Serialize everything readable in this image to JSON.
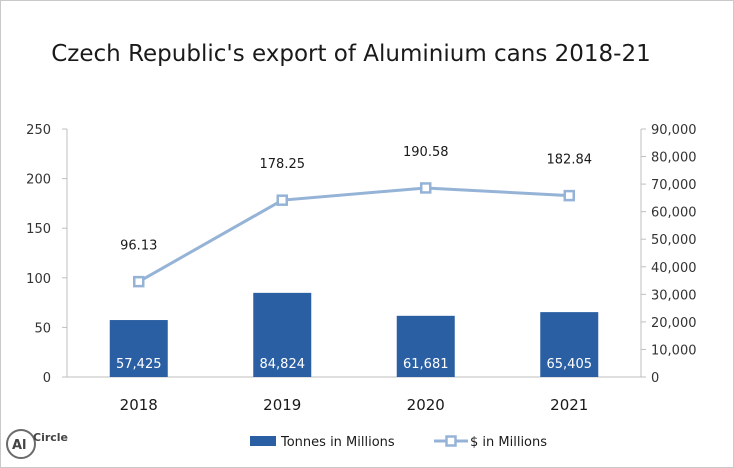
{
  "chart_data": {
    "type": "bar",
    "title": "Czech Republic's export of Aluminium cans 2018-21",
    "categories": [
      "2018",
      "2019",
      "2020",
      "2021"
    ],
    "series": [
      {
        "name": "Tonnes in Millions",
        "type": "bar",
        "axis": "left",
        "values": [
          57425,
          84824,
          61681,
          65405
        ],
        "labels": [
          "57,425",
          "84,824",
          "61,681",
          "65,405"
        ],
        "color": "#2b5fa3"
      },
      {
        "name": "$ in Millions",
        "type": "line",
        "axis": "right",
        "values": [
          96.13,
          178.25,
          190.58,
          182.84
        ],
        "labels": [
          "96.13",
          "178.25",
          "190.58",
          "182.84"
        ],
        "color": "#95b3d7"
      }
    ],
    "left_axis": {
      "ticks": [
        "0",
        "50",
        "100",
        "150",
        "200",
        "250"
      ],
      "ylim": [
        0,
        250
      ]
    },
    "right_axis": {
      "ticks": [
        "0",
        "10,000",
        "20,000",
        "30,000",
        "40,000",
        "50,000",
        "60,000",
        "70,000",
        "80,000",
        "90,000"
      ],
      "ylim": [
        0,
        90000
      ]
    },
    "grid": false,
    "legend_position": "bottom"
  },
  "logo": {
    "text": "AlCircle"
  }
}
